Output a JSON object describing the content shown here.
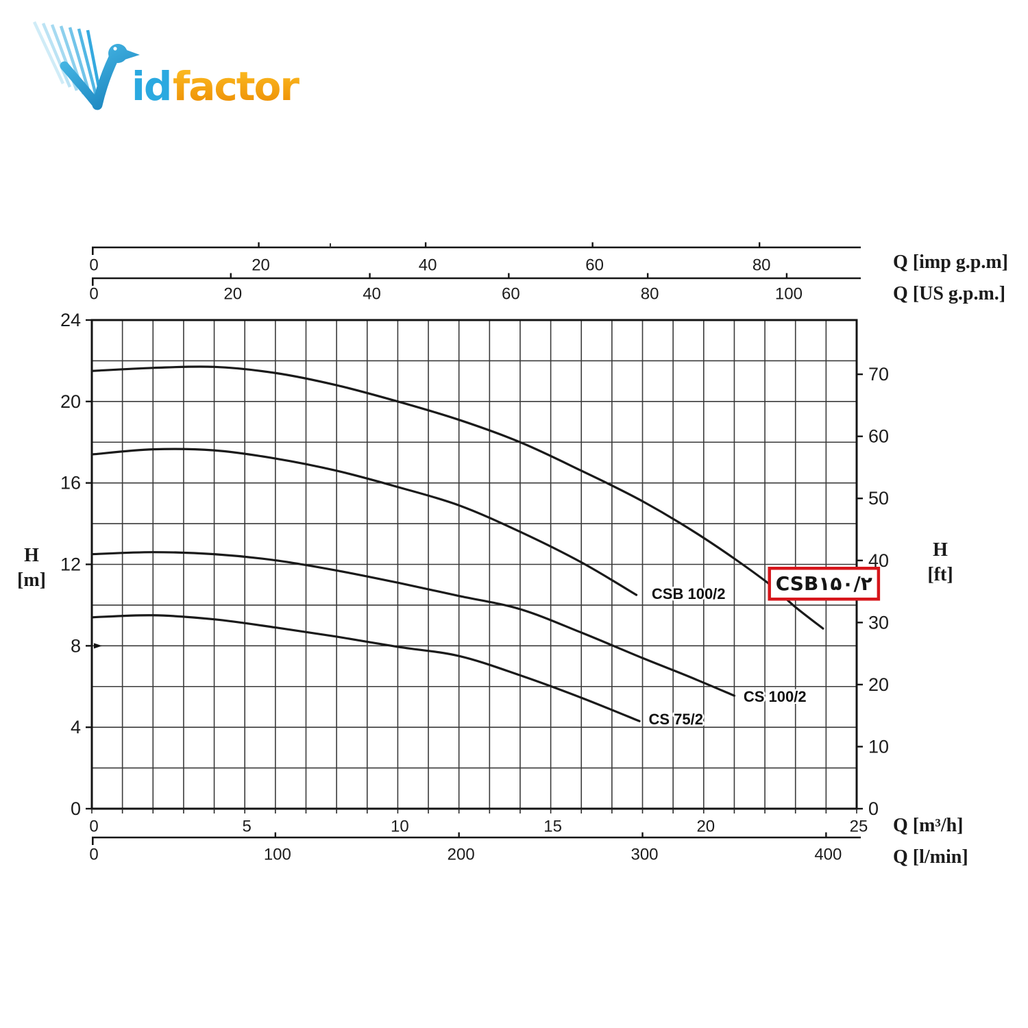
{
  "logo": {
    "id_text": "id",
    "factor_text": "factor",
    "bird_blue": "#2BA9E0",
    "factor_orange": "#F5A81C"
  },
  "chart_data": {
    "type": "line",
    "xlim_m3h": [
      0,
      25
    ],
    "ylim_m": [
      0,
      24
    ],
    "grid": {
      "x_step_m3h": 1,
      "y_step_m": 2,
      "grid_on": true
    },
    "x_axes": {
      "imp_gpm": {
        "label": "Q [imp g.p.m]",
        "ticks": [
          0,
          20,
          40,
          60,
          80
        ],
        "range": [
          0,
          91.7
        ]
      },
      "us_gpm": {
        "label": "Q [US g.p.m.]",
        "ticks": [
          0,
          20,
          40,
          60,
          80,
          100
        ],
        "range": [
          0,
          110.1
        ]
      },
      "m3h": {
        "label": "Q [m³/h]",
        "ticks": [
          0,
          5,
          10,
          15,
          20,
          25
        ],
        "range": [
          0,
          25
        ]
      },
      "lmin": {
        "label": "Q [l/min]",
        "ticks": [
          0,
          100,
          200,
          300,
          400
        ],
        "range": [
          0,
          416.7
        ]
      }
    },
    "y_axes": {
      "m": {
        "label_letter": "H",
        "label_unit": "[m]",
        "ticks": [
          24,
          20,
          16,
          12,
          8,
          4,
          0
        ],
        "range": [
          0,
          24
        ]
      },
      "ft": {
        "label_letter": "H",
        "label_unit": "[ft]",
        "ticks": [
          70,
          60,
          50,
          40,
          30,
          20,
          10,
          0
        ],
        "range": [
          0,
          78.7
        ]
      }
    },
    "series": [
      {
        "name": "CSB150/2",
        "label": "CSB۱۵۰/۲",
        "highlighted": true,
        "label_q": 22.35,
        "label_h": 11.05,
        "points_q_h": [
          [
            0,
            21.5
          ],
          [
            2,
            21.65
          ],
          [
            4,
            21.7
          ],
          [
            6,
            21.4
          ],
          [
            8,
            20.8
          ],
          [
            10,
            20.0
          ],
          [
            12,
            19.1
          ],
          [
            14,
            18.0
          ],
          [
            16,
            16.6
          ],
          [
            18,
            15.1
          ],
          [
            20,
            13.3
          ],
          [
            22,
            11.2
          ],
          [
            23,
            9.9
          ],
          [
            23.9,
            8.85
          ]
        ]
      },
      {
        "name": "CSB 100/2",
        "label": "CSB 100/2",
        "highlighted": false,
        "label_q": 18.3,
        "label_h": 10.55,
        "points_q_h": [
          [
            0,
            17.4
          ],
          [
            2,
            17.65
          ],
          [
            4,
            17.6
          ],
          [
            6,
            17.2
          ],
          [
            8,
            16.6
          ],
          [
            10,
            15.8
          ],
          [
            12,
            14.9
          ],
          [
            14,
            13.6
          ],
          [
            16,
            12.1
          ],
          [
            17.8,
            10.5
          ]
        ]
      },
      {
        "name": "CS 100/2",
        "label": "CS 100/2",
        "highlighted": false,
        "label_q": 21.3,
        "label_h": 5.5,
        "points_q_h": [
          [
            0,
            12.5
          ],
          [
            2,
            12.6
          ],
          [
            4,
            12.5
          ],
          [
            6,
            12.2
          ],
          [
            8,
            11.7
          ],
          [
            10,
            11.1
          ],
          [
            12,
            10.45
          ],
          [
            14,
            9.8
          ],
          [
            16,
            8.65
          ],
          [
            18,
            7.4
          ],
          [
            19.5,
            6.5
          ],
          [
            21,
            5.55
          ]
        ]
      },
      {
        "name": "CS 75/2",
        "label": "CS 75/2",
        "highlighted": false,
        "label_q": 18.2,
        "label_h": 4.4,
        "points_q_h": [
          [
            0,
            9.4
          ],
          [
            2,
            9.5
          ],
          [
            4,
            9.3
          ],
          [
            6,
            8.9
          ],
          [
            8,
            8.45
          ],
          [
            10,
            7.95
          ],
          [
            12,
            7.5
          ],
          [
            14,
            6.55
          ],
          [
            16,
            5.45
          ],
          [
            17.9,
            4.3
          ]
        ]
      }
    ],
    "highlight_box_color": "#D6161B",
    "curve_color": "#1A1A1A"
  }
}
